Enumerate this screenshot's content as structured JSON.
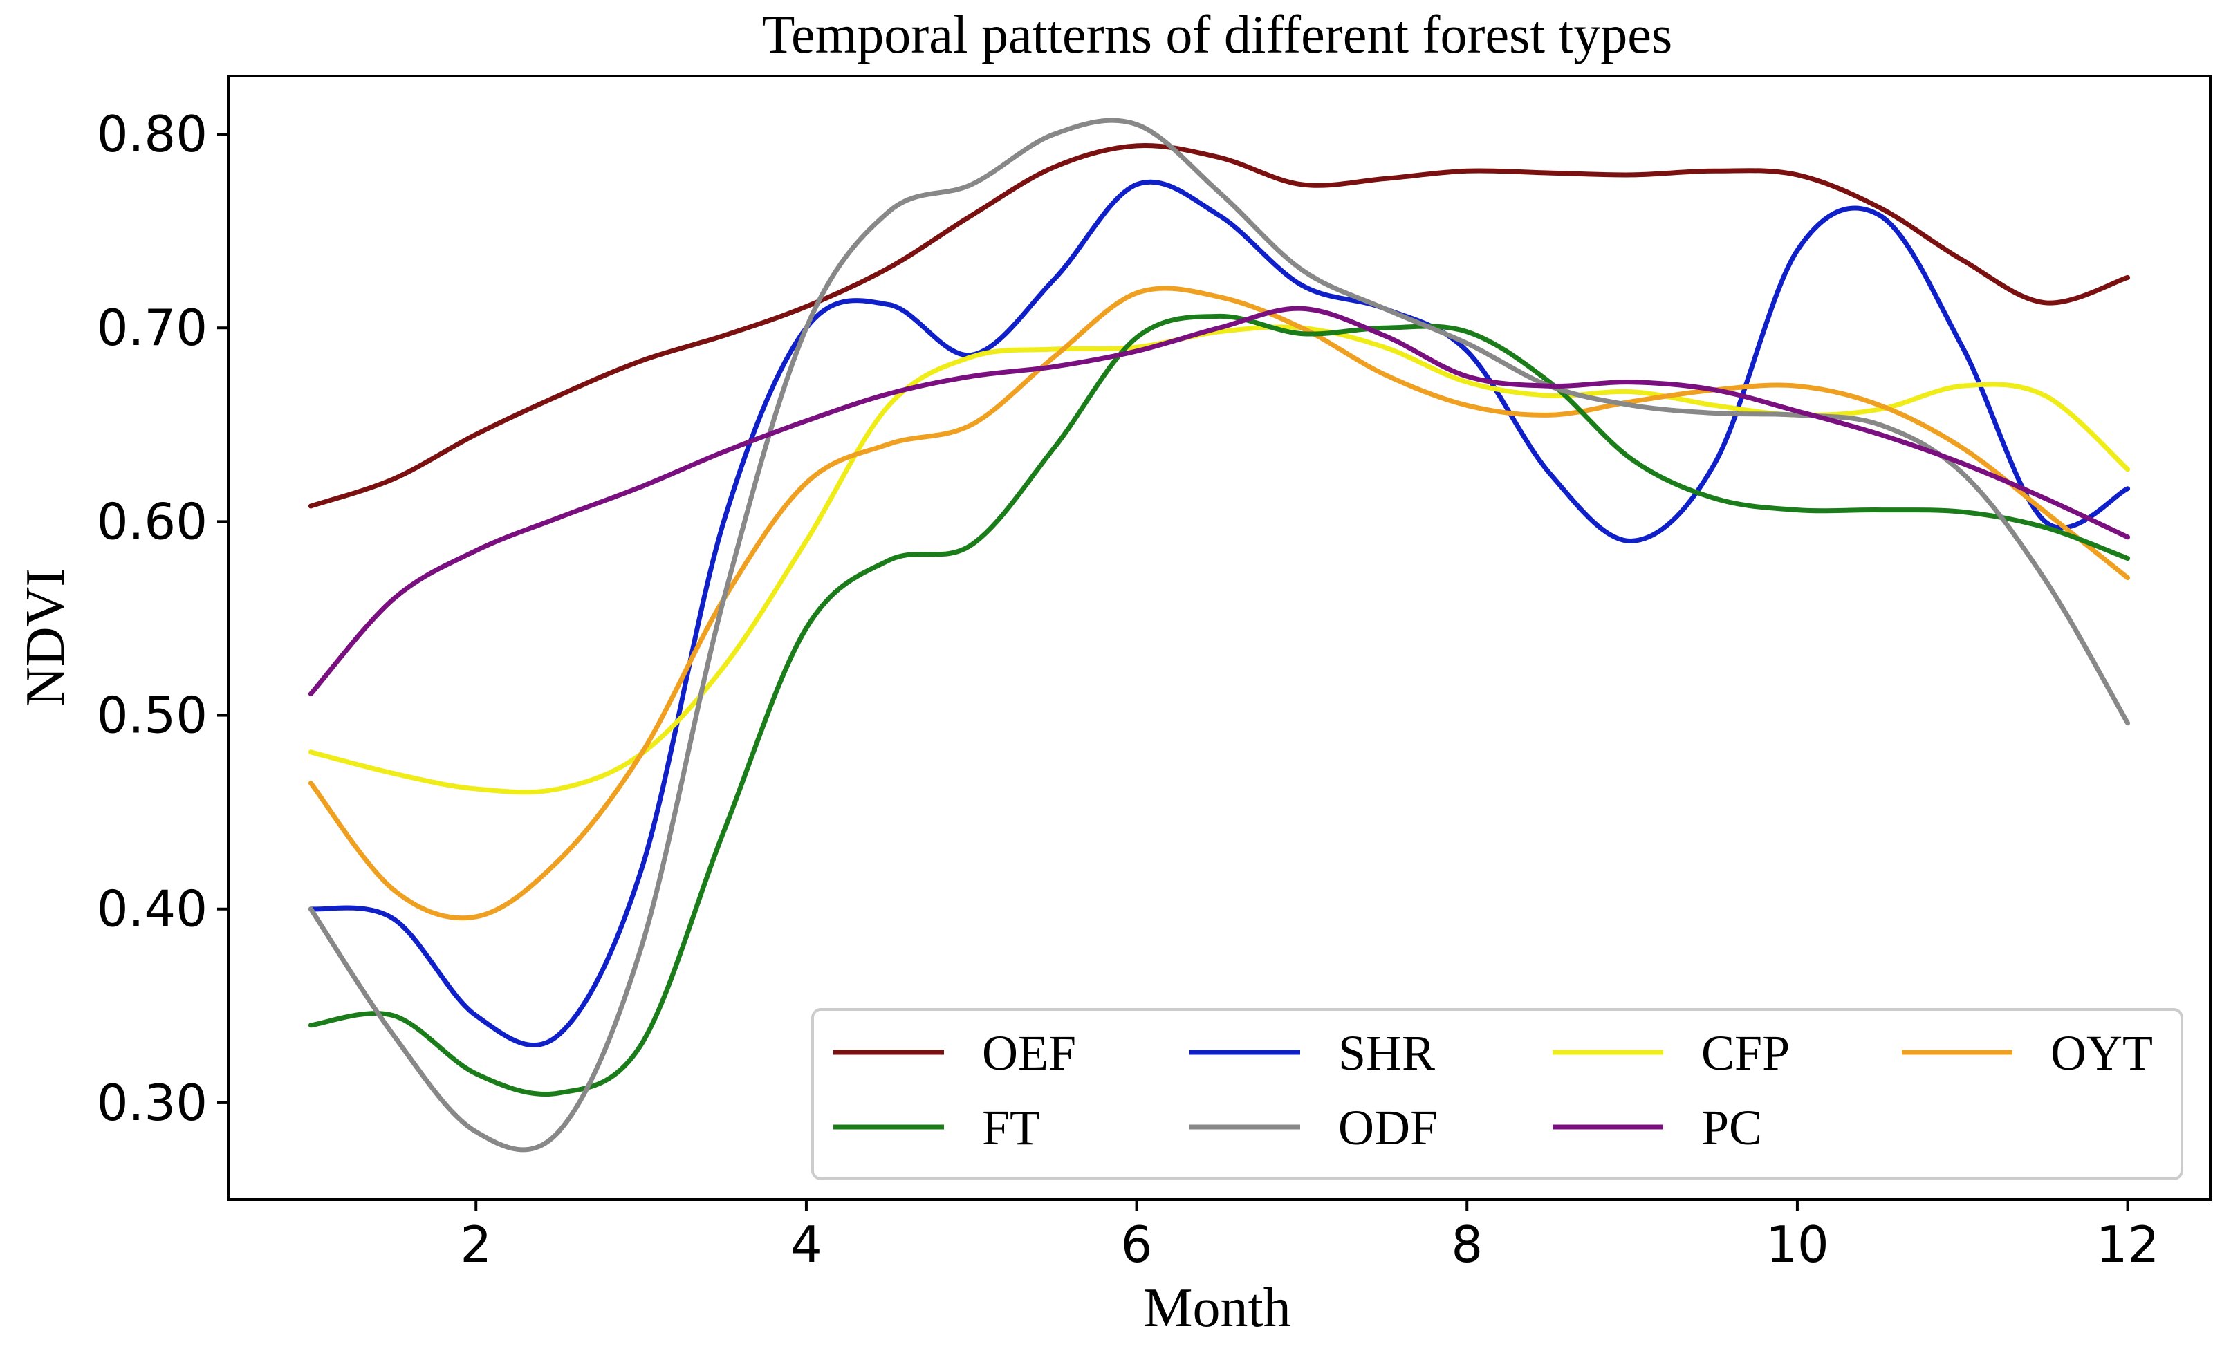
{
  "chart_data": {
    "type": "line",
    "title": "Temporal patterns of different forest types",
    "xlabel": "Month",
    "ylabel": "NDVI",
    "xlim": [
      0.5,
      12.5
    ],
    "ylim": [
      0.25,
      0.83
    ],
    "x_ticks": [
      2,
      4,
      6,
      8,
      10,
      12
    ],
    "y_ticks": [
      0.3,
      0.4,
      0.5,
      0.6,
      0.7,
      0.8
    ],
    "y_tick_labels": [
      "0.30",
      "0.40",
      "0.50",
      "0.60",
      "0.70",
      "0.80"
    ],
    "grid": false,
    "legend": {
      "position": "lower-right",
      "columns": 4
    },
    "x": [
      1,
      1.5,
      2,
      2.5,
      3,
      3.5,
      4,
      4.5,
      5,
      5.5,
      6,
      6.5,
      7,
      7.5,
      8,
      8.5,
      9,
      9.5,
      10,
      10.5,
      11,
      11.5,
      12
    ],
    "series": [
      {
        "name": "OEF",
        "color": "#7b1010",
        "values": [
          0.608,
          0.622,
          0.645,
          0.665,
          0.683,
          0.696,
          0.711,
          0.731,
          0.758,
          0.783,
          0.794,
          0.788,
          0.774,
          0.777,
          0.781,
          0.78,
          0.779,
          0.781,
          0.779,
          0.762,
          0.735,
          0.713,
          0.726
        ]
      },
      {
        "name": "SHR",
        "color": "#1020c8",
        "values": [
          0.4,
          0.395,
          0.345,
          0.335,
          0.42,
          0.6,
          0.7,
          0.712,
          0.686,
          0.725,
          0.774,
          0.758,
          0.722,
          0.71,
          0.688,
          0.625,
          0.59,
          0.63,
          0.74,
          0.758,
          0.69,
          0.6,
          0.617
        ]
      },
      {
        "name": "CFP",
        "color": "#f0ec18",
        "values": [
          0.481,
          0.47,
          0.462,
          0.462,
          0.48,
          0.525,
          0.59,
          0.66,
          0.685,
          0.689,
          0.69,
          0.698,
          0.7,
          0.69,
          0.672,
          0.665,
          0.667,
          0.66,
          0.655,
          0.658,
          0.67,
          0.665,
          0.627
        ]
      },
      {
        "name": "OYT",
        "color": "#f0a020",
        "values": [
          0.465,
          0.41,
          0.396,
          0.425,
          0.48,
          0.56,
          0.62,
          0.64,
          0.65,
          0.685,
          0.718,
          0.716,
          0.7,
          0.676,
          0.66,
          0.655,
          0.662,
          0.668,
          0.67,
          0.66,
          0.638,
          0.605,
          0.571
        ]
      },
      {
        "name": "FT",
        "color": "#1a7d1a",
        "values": [
          0.34,
          0.345,
          0.315,
          0.305,
          0.33,
          0.44,
          0.545,
          0.58,
          0.588,
          0.638,
          0.695,
          0.706,
          0.697,
          0.7,
          0.698,
          0.672,
          0.632,
          0.612,
          0.606,
          0.606,
          0.605,
          0.597,
          0.581
        ]
      },
      {
        "name": "ODF",
        "color": "#888888",
        "values": [
          0.4,
          0.335,
          0.285,
          0.285,
          0.38,
          0.56,
          0.7,
          0.76,
          0.774,
          0.8,
          0.805,
          0.77,
          0.73,
          0.71,
          0.692,
          0.67,
          0.66,
          0.656,
          0.655,
          0.65,
          0.625,
          0.57,
          0.496
        ]
      },
      {
        "name": "PC",
        "color": "#7a1080",
        "values": [
          0.511,
          0.56,
          0.585,
          0.602,
          0.618,
          0.636,
          0.652,
          0.666,
          0.675,
          0.68,
          0.688,
          0.7,
          0.71,
          0.696,
          0.675,
          0.67,
          0.672,
          0.668,
          0.657,
          0.645,
          0.63,
          0.612,
          0.592
        ]
      }
    ]
  }
}
